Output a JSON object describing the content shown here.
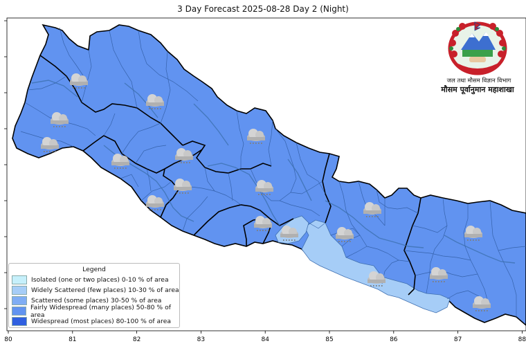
{
  "title": "3 Day Forecast 2025-08-28 Day 2 (Night)",
  "x_ticks": [
    "80",
    "81",
    "82",
    "83",
    "84",
    "85",
    "86",
    "87",
    "88"
  ],
  "legend": {
    "title": "Legend",
    "items": [
      {
        "label": "Isolated (one or two places)  0-10 % of area",
        "color": "#c6f0fb"
      },
      {
        "label": "Widely Scattered (few places) 10-30 % of area",
        "color": "#a6cdf7"
      },
      {
        "label": "Scattered (some places) 30-50  % of area",
        "color": "#7fadf4"
      },
      {
        "label": "Fairly Widespread (many places) 50-80 % of area",
        "color": "#6193f0"
      },
      {
        "label": "Widespread (most places) 80-100 % of area",
        "color": "#2f5fe0"
      }
    ]
  },
  "header": {
    "department": "जल तथा मौसम विज्ञान विभाग",
    "division": "मौसम पूर्वानुमान महाशाखा"
  },
  "colors": {
    "fairly_widespread": "#6193f0",
    "widely_scattered": "#a6cdf7",
    "border": "#000000",
    "internal_border": "#3f6fb0"
  },
  "icon": "rain-cloud-icon"
}
